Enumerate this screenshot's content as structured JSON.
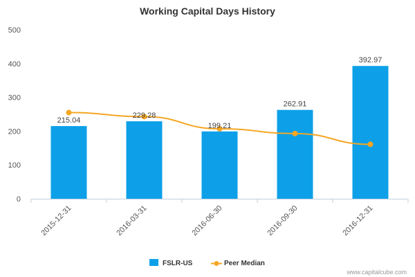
{
  "chart_data": {
    "type": "bar",
    "title": "Working Capital Days History",
    "categories": [
      "2015-12-31",
      "2016-03-31",
      "2016-06-30",
      "2016-09-30",
      "2016-12-31"
    ],
    "series": [
      {
        "name": "FSLR-US",
        "kind": "bar",
        "color": "#0da0e9",
        "values": [
          215.04,
          229.28,
          199.21,
          262.91,
          392.97
        ],
        "labels": [
          "215.04",
          "229.28",
          "199.21",
          "262.91",
          "392.97"
        ]
      },
      {
        "name": "Peer Median",
        "kind": "line",
        "color": "#f5a623",
        "values": [
          255,
          243,
          207,
          193,
          161
        ]
      }
    ],
    "yticks": [
      "0",
      "100",
      "200",
      "300",
      "400",
      "500"
    ],
    "ylim": [
      0,
      500
    ],
    "grid": false,
    "legend_position": "bottom-center",
    "credit": "www.capitalcube.com"
  }
}
